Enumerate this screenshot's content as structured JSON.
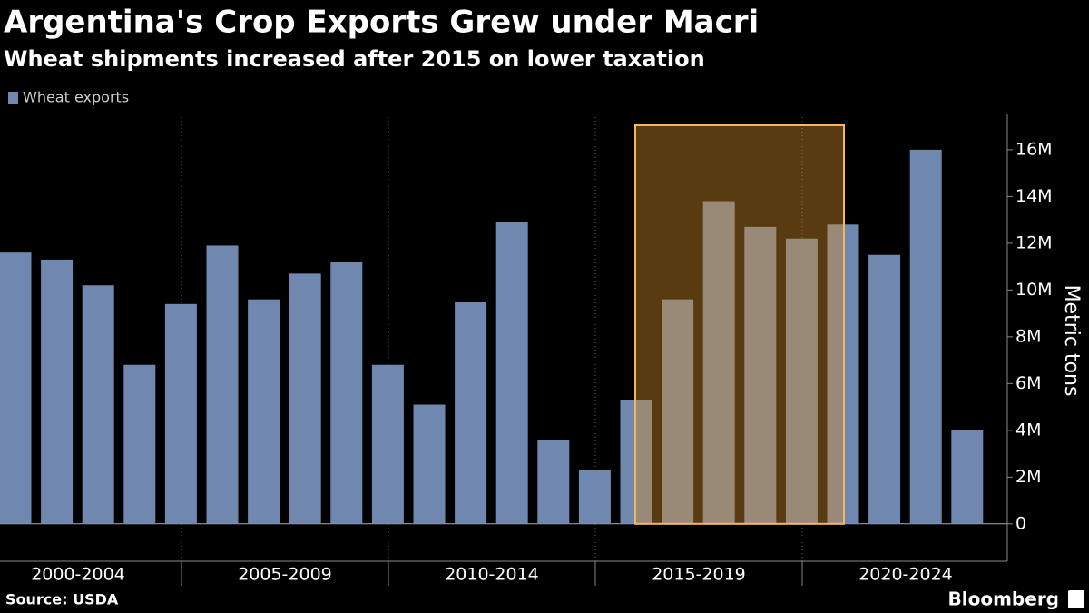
{
  "chart_data": {
    "type": "bar",
    "title": "Argentina's Crop Exports Grew under Macri",
    "subtitle": "Wheat shipments increased after 2015 on lower taxation",
    "y_label": "Metric tons",
    "source": "Source: USDA",
    "brand": "Bloomberg",
    "x_groups": [
      "2000-2004",
      "2005-2009",
      "2010-2014",
      "2015-2019",
      "2020-2024"
    ],
    "categories": [
      null,
      null,
      null,
      null,
      null,
      null,
      null,
      null,
      null,
      null,
      null,
      null,
      null,
      null,
      null,
      null,
      null,
      null,
      null,
      null,
      null,
      null,
      null,
      null
    ],
    "series": [
      {
        "name": "Wheat exports",
        "color": "#7088b0",
        "values": [
          11.6,
          11.3,
          10.2,
          6.8,
          9.4,
          11.9,
          9.6,
          10.7,
          11.2,
          6.8,
          5.1,
          9.5,
          12.9,
          3.6,
          2.3,
          5.3,
          9.6,
          13.8,
          12.7,
          12.2,
          12.8,
          11.5,
          16.0,
          4.0
        ]
      }
    ],
    "ylim": [
      -1.6,
      17.55
    ],
    "yticks": [
      0,
      {
        "value": 2,
        "label": "2M"
      },
      {
        "value": 4,
        "label": "4M"
      },
      {
        "value": 6,
        "label": "6M"
      },
      {
        "value": 8,
        "label": "8M"
      },
      {
        "value": 10,
        "label": "10M"
      },
      {
        "value": 12,
        "label": "12M"
      },
      {
        "value": 14,
        "label": "14M"
      },
      {
        "value": 16,
        "label": "16M"
      }
    ]
  }
}
